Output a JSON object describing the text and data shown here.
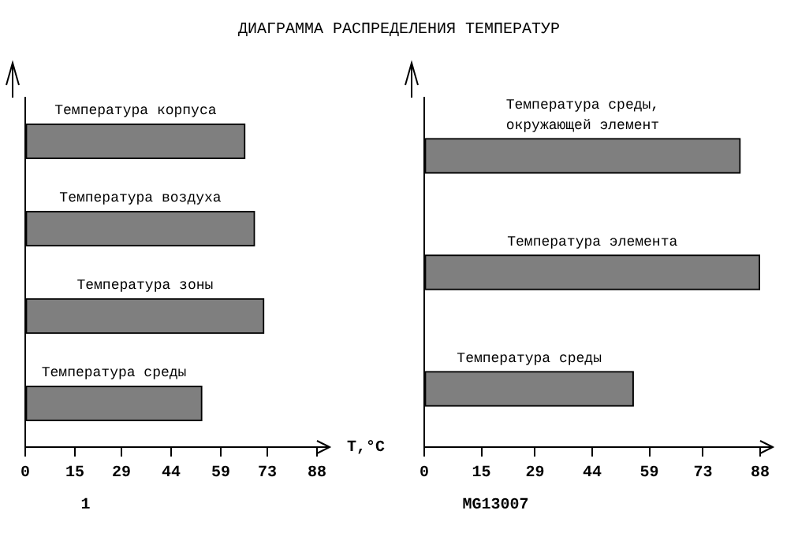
{
  "chart_data": [
    {
      "type": "bar",
      "orientation": "horizontal",
      "title": "ДИАГРАММА РАСПРЕДЕЛЕНИЯ ТЕМПЕРАТУР",
      "xlabel": "T,°C",
      "categories": [
        "Температура корпуса",
        "Температура воздуха",
        "Температура зоны",
        "Температура среды"
      ],
      "values": [
        66.3,
        69.2,
        72.0,
        53.3
      ],
      "color": "#7f7f7f",
      "xlim": [
        0,
        88
      ],
      "xticks": [
        0,
        15,
        29,
        44,
        59,
        73,
        88
      ],
      "tick_labels": "x",
      "grid": false,
      "legend": false,
      "annotations": [
        "1"
      ]
    },
    {
      "type": "bar",
      "orientation": "horizontal",
      "categories": [
        "Температура среды, окружающей элемент",
        "Температура элемента",
        "Температура среды"
      ],
      "values": [
        82.8,
        87.9,
        54.8
      ],
      "color": "#7f7f7f",
      "xlim": [
        0,
        88
      ],
      "xticks": [
        0,
        15,
        29,
        44,
        59,
        73,
        88
      ],
      "tick_labels": "x",
      "grid": false,
      "legend": false,
      "annotations": [
        "MG13007"
      ]
    }
  ]
}
